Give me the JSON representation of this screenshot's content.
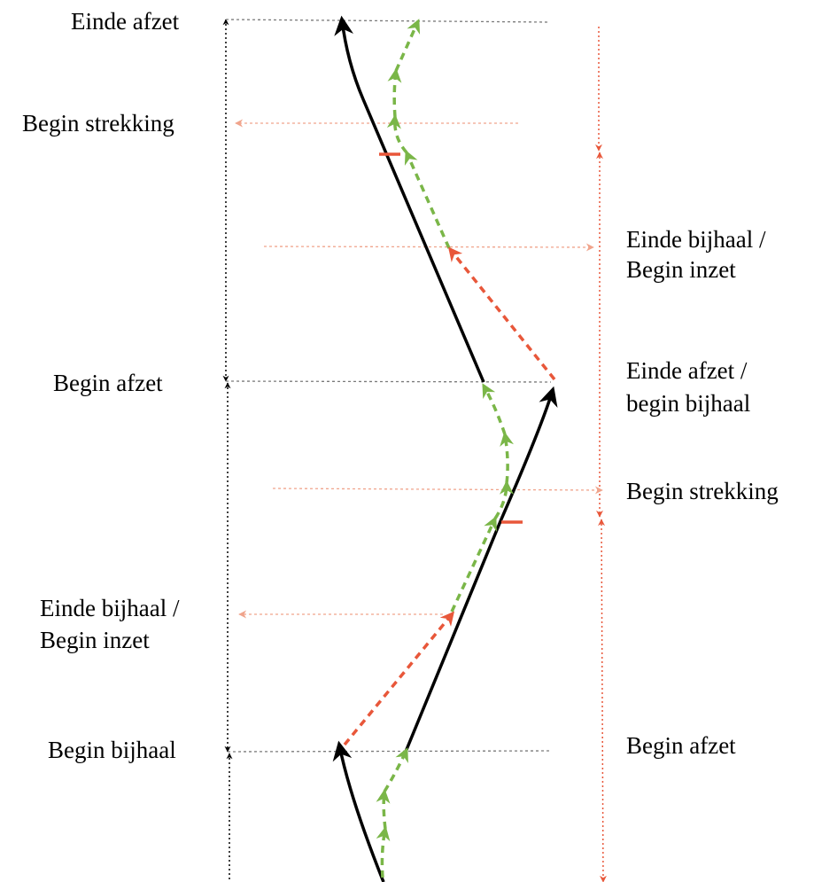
{
  "labels": {
    "left_einde_afzet": "Einde afzet",
    "left_begin_strekking": "Begin strekking",
    "left_begin_afzet": "Begin afzet",
    "left_einde_bijhaal_1": "Einde bijhaal /",
    "left_einde_bijhaal_2": "Begin inzet",
    "left_begin_bijhaal": "Begin bijhaal",
    "right_einde_bijhaal_1": "Einde bijhaal /",
    "right_einde_bijhaal_2": "Begin inzet",
    "right_einde_afzet_1": "Einde afzet /",
    "right_einde_afzet_2": "begin bijhaal",
    "right_begin_strekking": "Begin strekking",
    "right_begin_afzet": "Begin afzet"
  },
  "colors": {
    "black_path": "#000000",
    "green_path": "#7ab648",
    "red_path": "#e8573a",
    "light_red_arrow": "#f0a48c",
    "guide_gray": "#7a7a7a"
  }
}
